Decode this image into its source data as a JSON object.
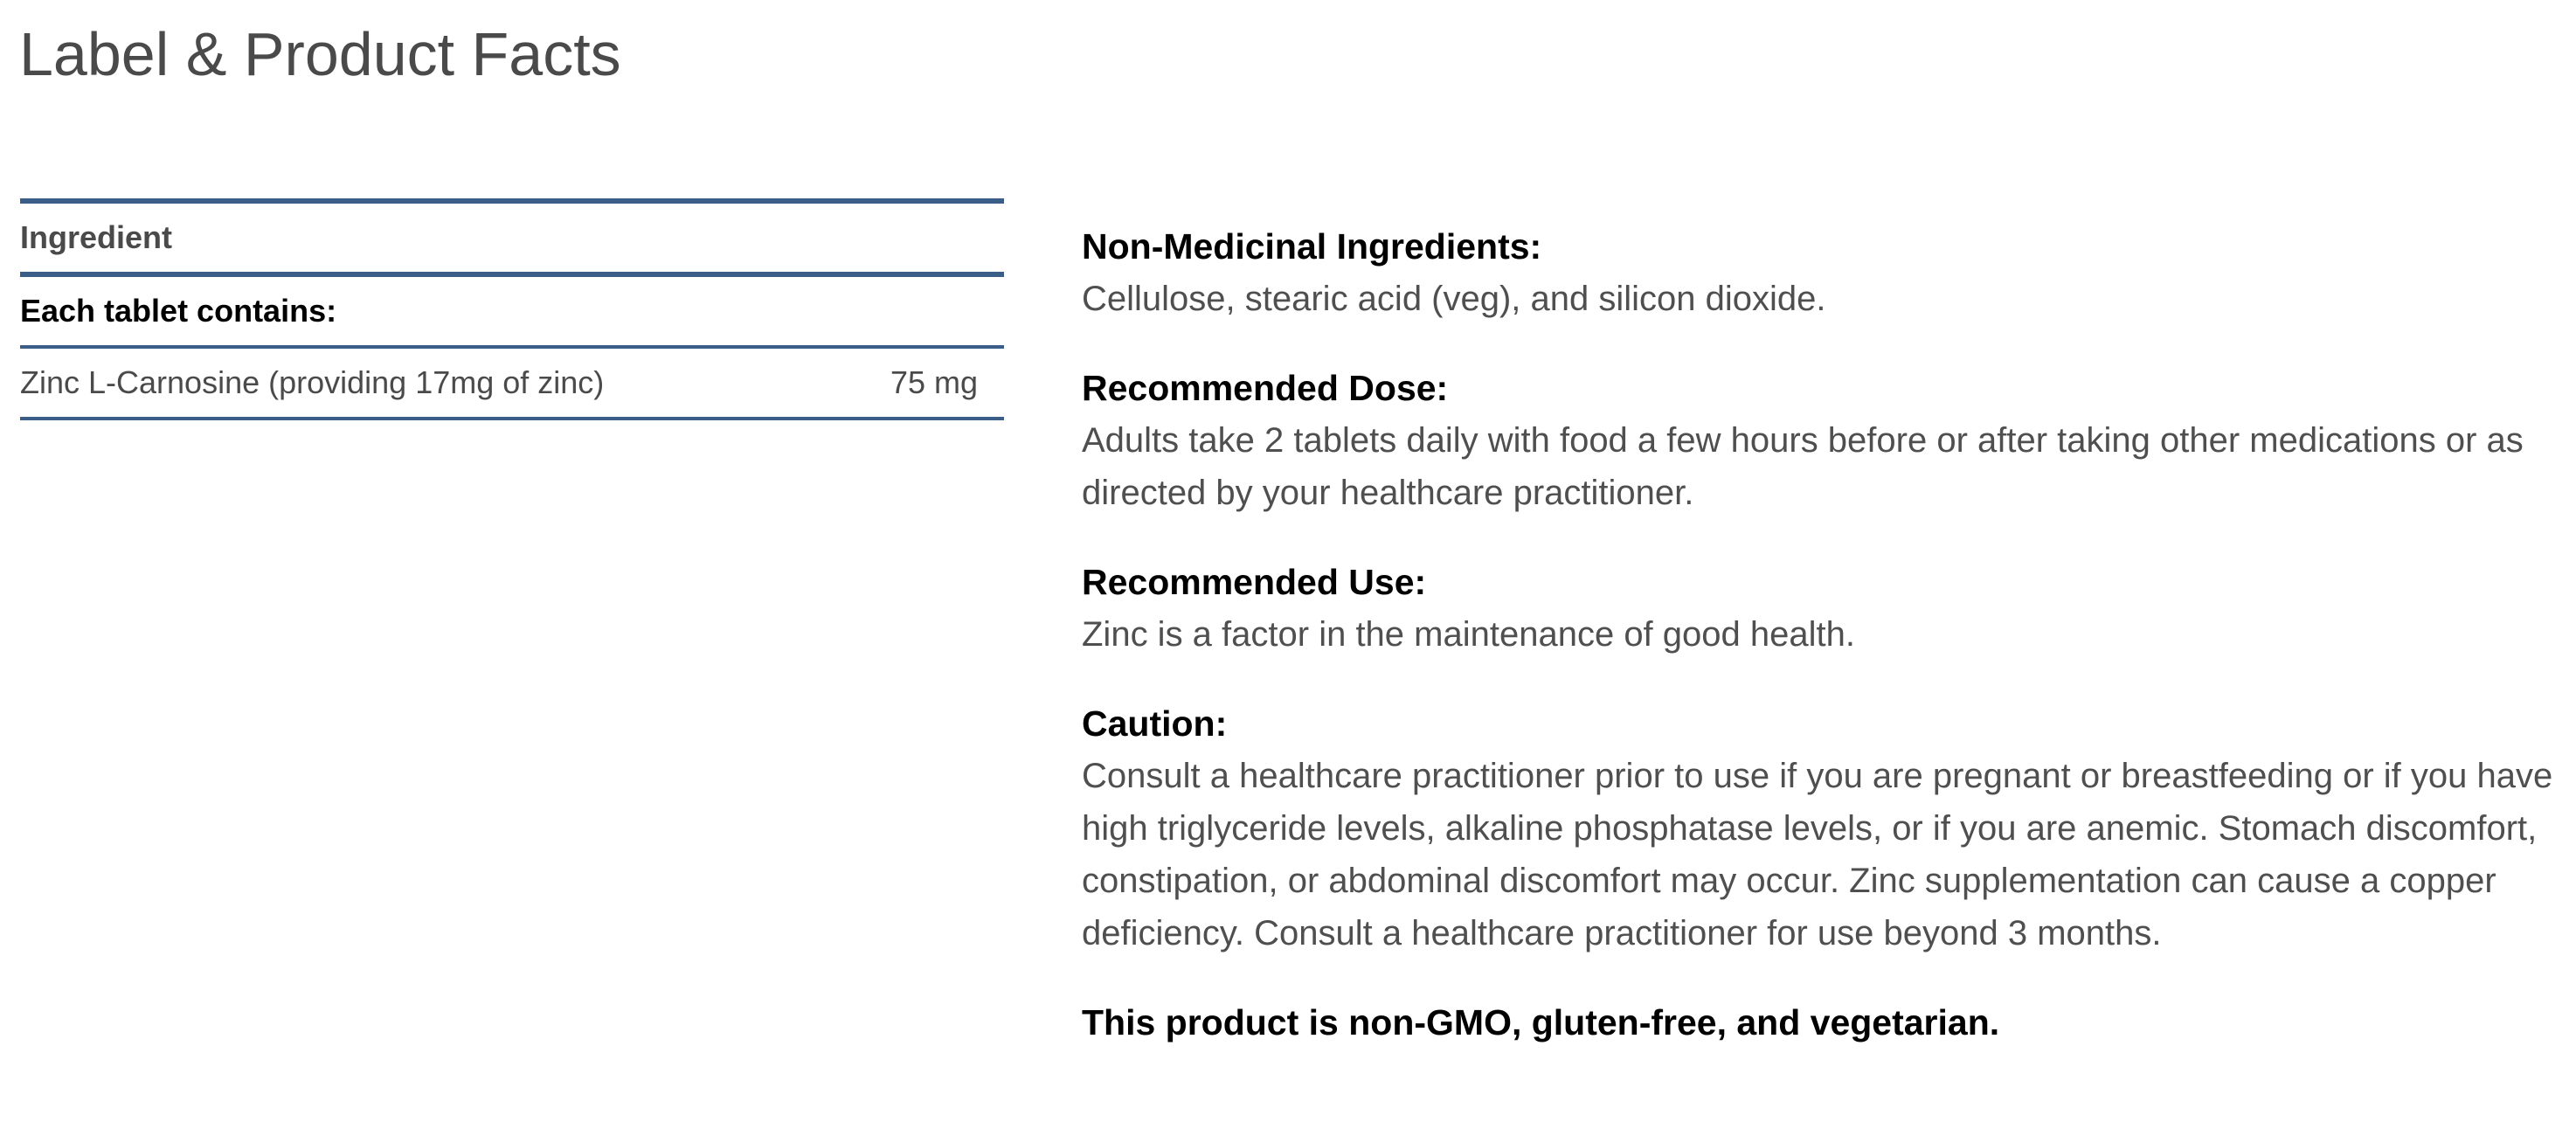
{
  "page_title": "Label & Product Facts",
  "ingredients_table": {
    "header": "Ingredient",
    "subheader": "Each tablet contains:",
    "rows": [
      {
        "name": "Zinc L-Carnosine (providing 17mg of zinc)",
        "amount": "75 mg"
      }
    ]
  },
  "sections": [
    {
      "heading": "Non-Medicinal Ingredients:",
      "text": "Cellulose, stearic acid (veg), and silicon dioxide."
    },
    {
      "heading": "Recommended Dose:",
      "text": "Adults take 2 tablets daily with food a few hours before or after taking other medications or as directed by your healthcare practitioner."
    },
    {
      "heading": "Recommended Use:",
      "text": "Zinc is a factor in the maintenance of good health."
    },
    {
      "heading": "Caution:",
      "text": "Consult a healthcare practitioner prior to use if you are pregnant or breastfeeding or if you have high triglyceride levels, alkaline phosphatase levels, or if you are anemic. Stomach discomfort, constipation, or abdominal discomfort may occur. Zinc supplementation can cause a copper deficiency. Consult a healthcare practitioner for use beyond 3 months."
    }
  ],
  "footer_note": "This product is non-GMO, gluten-free, and vegetarian.",
  "colors": {
    "table_rule": "#3a5e88",
    "title": "#4a4a4a",
    "body_text": "#4f4f4f"
  }
}
